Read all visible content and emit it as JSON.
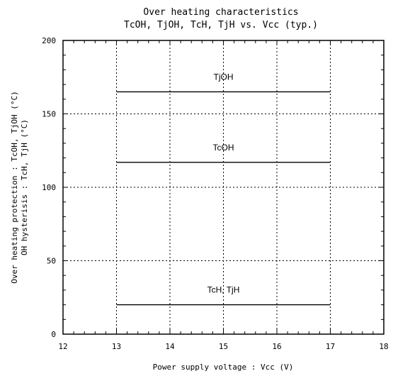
{
  "chart_data": {
    "type": "line",
    "title": "Over heating characteristics",
    "subtitle": "TcOH, TjOH, TcH, TjH vs.  Vcc (typ.)",
    "xlabel": "Power supply voltage : Vcc (V)",
    "ylabel_lines": [
      "Over heating protection : TcOH, TjOH (°C)",
      "OH hysterisis : TcH, TjH (°C)"
    ],
    "xlim": [
      12,
      18
    ],
    "ylim": [
      0,
      200
    ],
    "xticks": [
      12,
      13,
      14,
      15,
      16,
      17,
      18
    ],
    "yticks": [
      0,
      50,
      100,
      150,
      200
    ],
    "grid": true,
    "series": [
      {
        "name": "TjOH",
        "x": [
          13,
          17
        ],
        "y": [
          165,
          165
        ]
      },
      {
        "name": "TcOH",
        "x": [
          13,
          17
        ],
        "y": [
          117,
          117
        ]
      },
      {
        "name": "TcH, TjH",
        "x": [
          13,
          17
        ],
        "y": [
          20,
          20
        ]
      }
    ]
  }
}
